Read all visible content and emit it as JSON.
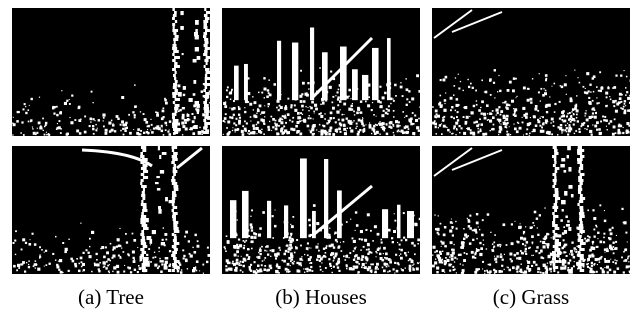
{
  "figure": {
    "captions": [
      "(a) Tree",
      "(b) Houses",
      "(c) Grass"
    ]
  }
}
